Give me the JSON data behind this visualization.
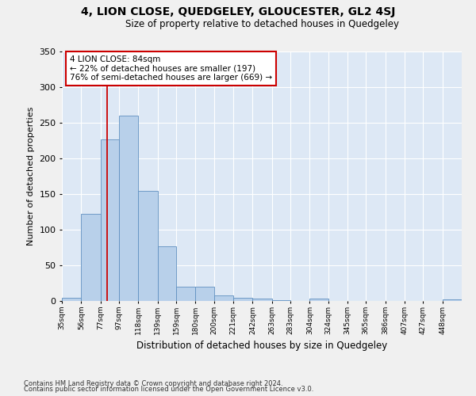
{
  "title1": "4, LION CLOSE, QUEDGELEY, GLOUCESTER, GL2 4SJ",
  "title2": "Size of property relative to detached houses in Quedgeley",
  "xlabel": "Distribution of detached houses by size in Quedgeley",
  "ylabel": "Number of detached properties",
  "bin_labels": [
    "35sqm",
    "56sqm",
    "77sqm",
    "97sqm",
    "118sqm",
    "139sqm",
    "159sqm",
    "180sqm",
    "200sqm",
    "221sqm",
    "242sqm",
    "263sqm",
    "283sqm",
    "304sqm",
    "324sqm",
    "345sqm",
    "365sqm",
    "386sqm",
    "407sqm",
    "427sqm",
    "448sqm"
  ],
  "bin_edges": [
    35,
    56,
    77,
    97,
    118,
    139,
    159,
    180,
    200,
    221,
    242,
    263,
    283,
    304,
    324,
    345,
    365,
    386,
    407,
    427,
    448,
    469
  ],
  "bar_values": [
    5,
    122,
    227,
    260,
    154,
    77,
    20,
    20,
    8,
    5,
    3,
    1,
    0,
    3,
    0,
    0,
    0,
    0,
    0,
    0,
    2
  ],
  "bar_color": "#b8d0ea",
  "bar_edge_color": "#6090c0",
  "background_color": "#dde8f5",
  "grid_color": "#ffffff",
  "fig_background": "#f0f0f0",
  "property_size": 84,
  "red_line_color": "#cc0000",
  "annotation_text": "4 LION CLOSE: 84sqm\n← 22% of detached houses are smaller (197)\n76% of semi-detached houses are larger (669) →",
  "annotation_box_color": "#ffffff",
  "annotation_box_edge": "#cc0000",
  "ylim": [
    0,
    350
  ],
  "yticks": [
    0,
    50,
    100,
    150,
    200,
    250,
    300,
    350
  ],
  "footer1": "Contains HM Land Registry data © Crown copyright and database right 2024.",
  "footer2": "Contains public sector information licensed under the Open Government Licence v3.0."
}
